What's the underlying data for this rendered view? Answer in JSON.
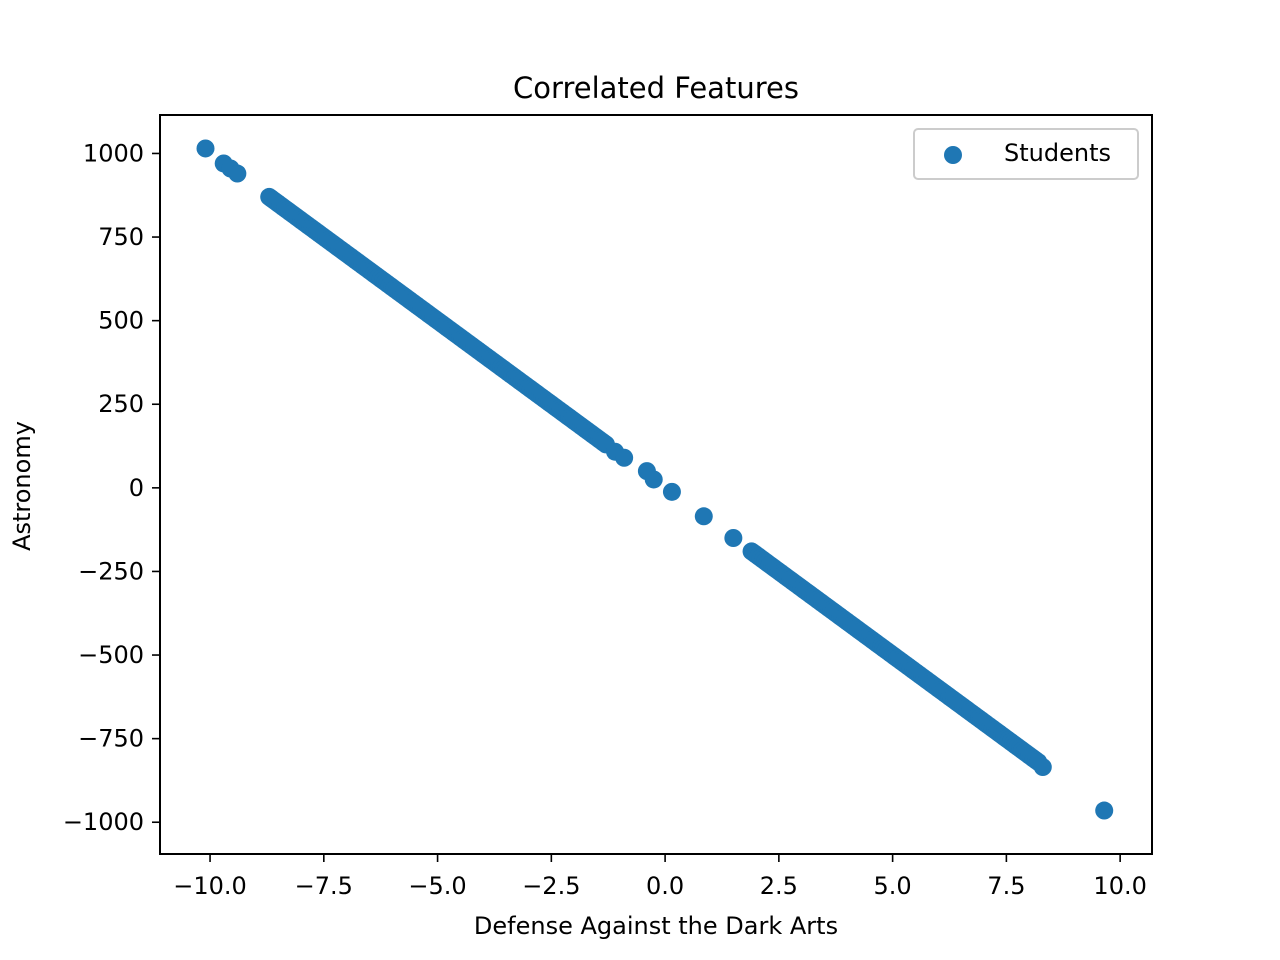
{
  "chart_data": {
    "type": "scatter",
    "title": "Correlated Features",
    "xlabel": "Defense Against the Dark Arts",
    "ylabel": "Astronomy",
    "xlim": [
      -11.1,
      10.7
    ],
    "ylim": [
      -1095,
      1115
    ],
    "xticks": [
      -10.0,
      -7.5,
      -5.0,
      -2.5,
      0.0,
      2.5,
      5.0,
      7.5,
      10.0
    ],
    "xtick_labels": [
      "−10.0",
      "−7.5",
      "−5.0",
      "−2.5",
      "0.0",
      "2.5",
      "5.0",
      "7.5",
      "10.0"
    ],
    "yticks": [
      1000,
      750,
      500,
      250,
      0,
      -250,
      -500,
      -750,
      -1000
    ],
    "ytick_labels": [
      "1000",
      "750",
      "500",
      "250",
      "0",
      "−250",
      "−500",
      "−750",
      "−1000"
    ],
    "grid": false,
    "legend_position": "top-right",
    "series": [
      {
        "name": "Students",
        "color": "#1f77b4",
        "dense_segments": [
          {
            "x_start": -8.7,
            "x_end": -1.3,
            "step": 0.05
          },
          {
            "x_start": 1.9,
            "x_end": 8.2,
            "step": 0.05
          }
        ],
        "slope": -100,
        "intercept": 0,
        "points": [
          {
            "x": -10.1,
            "y": 1015
          },
          {
            "x": -9.7,
            "y": 970
          },
          {
            "x": -9.55,
            "y": 955
          },
          {
            "x": -9.4,
            "y": 940
          },
          {
            "x": -1.1,
            "y": 108
          },
          {
            "x": -0.9,
            "y": 90
          },
          {
            "x": -0.4,
            "y": 50
          },
          {
            "x": -0.25,
            "y": 25
          },
          {
            "x": 0.15,
            "y": -12
          },
          {
            "x": 0.85,
            "y": -85
          },
          {
            "x": 1.5,
            "y": -150
          },
          {
            "x": 8.3,
            "y": -835
          },
          {
            "x": 9.65,
            "y": -965
          }
        ]
      }
    ]
  }
}
